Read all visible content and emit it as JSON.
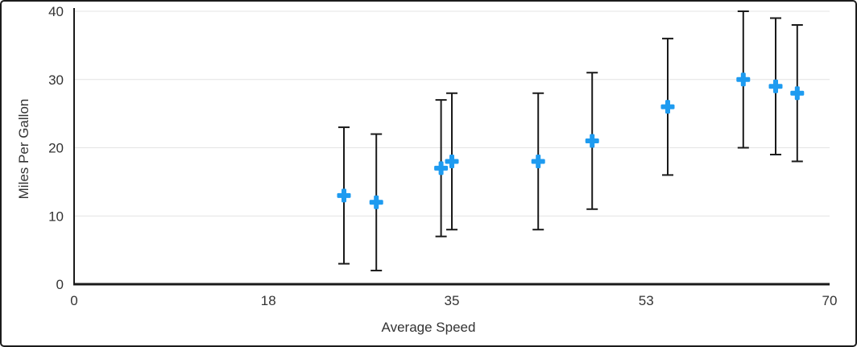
{
  "chart_data": {
    "type": "scatter",
    "title": "",
    "xlabel": "Average Speed",
    "ylabel": "Miles Per Gallon",
    "xlim": [
      0,
      70
    ],
    "ylim": [
      0,
      40
    ],
    "x_ticks": [
      0,
      18,
      35,
      53,
      70
    ],
    "y_ticks": [
      0,
      10,
      20,
      30,
      40
    ],
    "grid": "horizontal-light-gray",
    "legend": "none",
    "marker_style": "plus",
    "marker_color": "#1E9BF0",
    "error_bar_color": "#1a1a1a",
    "axis_color": "#1a1a1a",
    "gridline_color": "#e4e4e4",
    "series": [
      {
        "name": "Miles Per Gallon",
        "points": [
          {
            "x": 25,
            "y": 13,
            "error_plus": 10,
            "error_minus": 10
          },
          {
            "x": 28,
            "y": 12,
            "error_plus": 10,
            "error_minus": 10
          },
          {
            "x": 34,
            "y": 17,
            "error_plus": 10,
            "error_minus": 10
          },
          {
            "x": 35,
            "y": 18,
            "error_plus": 10,
            "error_minus": 10
          },
          {
            "x": 43,
            "y": 18,
            "error_plus": 10,
            "error_minus": 10
          },
          {
            "x": 48,
            "y": 21,
            "error_plus": 10,
            "error_minus": 10
          },
          {
            "x": 55,
            "y": 26,
            "error_plus": 10,
            "error_minus": 10
          },
          {
            "x": 62,
            "y": 30,
            "error_plus": 10,
            "error_minus": 10
          },
          {
            "x": 65,
            "y": 29,
            "error_plus": 10,
            "error_minus": 10
          },
          {
            "x": 67,
            "y": 28,
            "error_plus": 10,
            "error_minus": 10
          }
        ]
      }
    ]
  }
}
